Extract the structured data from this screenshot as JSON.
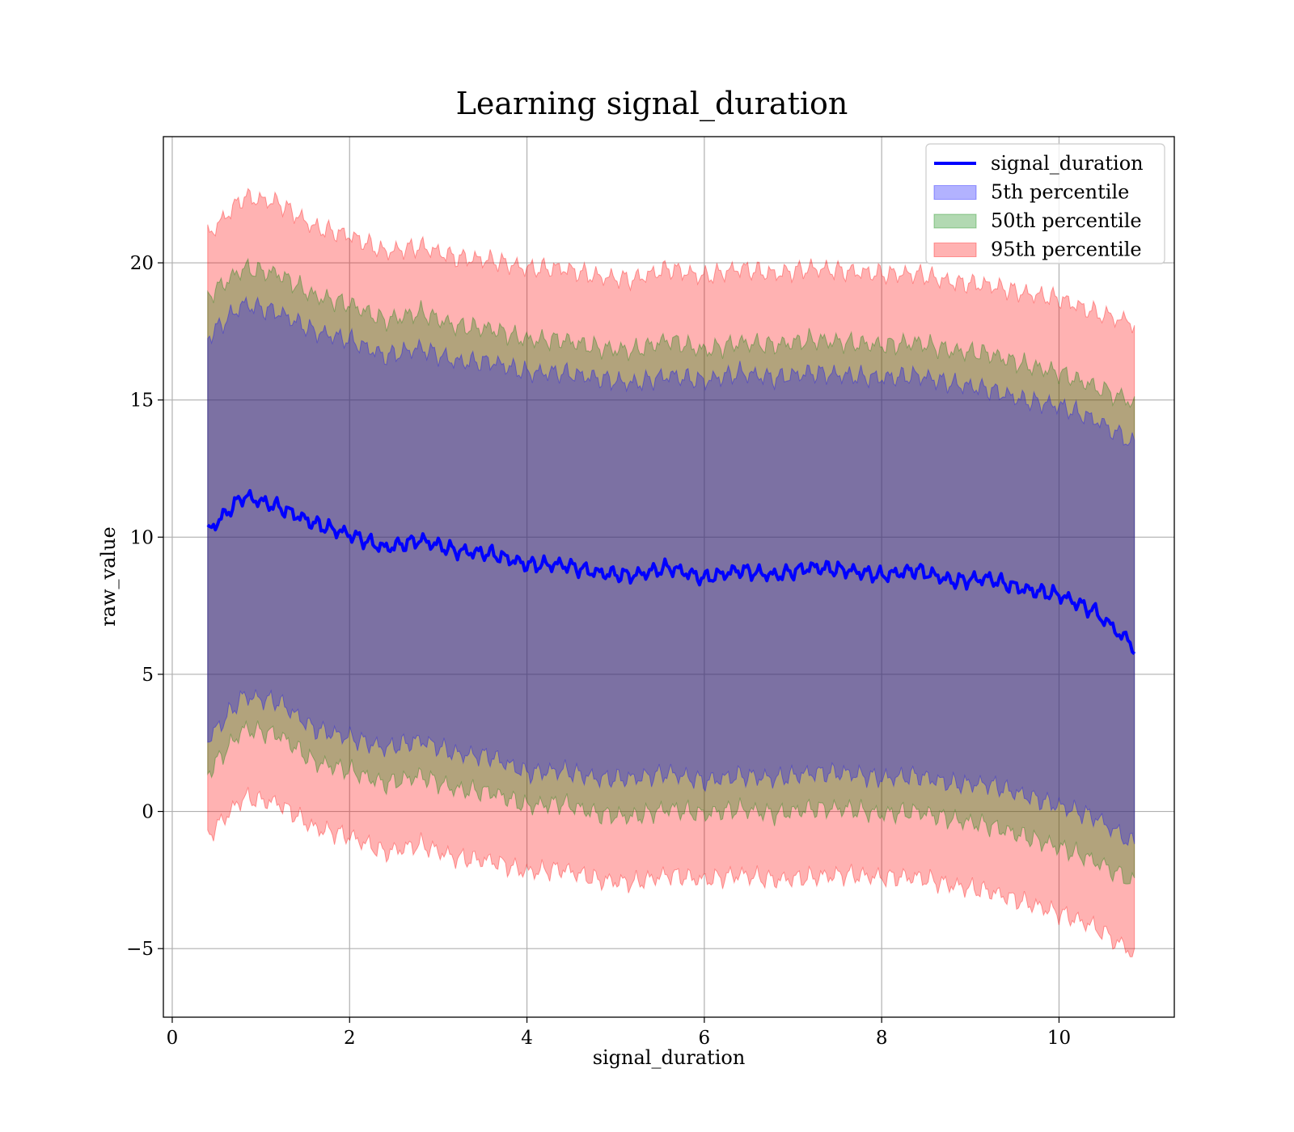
{
  "chart_data": {
    "type": "area",
    "title": "Learning signal_duration",
    "xlabel": "signal_duration",
    "ylabel": "raw_value",
    "xlim": [
      -0.1,
      11.3
    ],
    "ylim": [
      -7.5,
      24.6
    ],
    "x_ticks": [
      {
        "value": 0,
        "label": "0"
      },
      {
        "value": 2,
        "label": "2"
      },
      {
        "value": 4,
        "label": "4"
      },
      {
        "value": 6,
        "label": "6"
      },
      {
        "value": 8,
        "label": "8"
      },
      {
        "value": 10,
        "label": "10"
      }
    ],
    "y_ticks": [
      {
        "value": -5,
        "label": "−5"
      },
      {
        "value": 0,
        "label": "0"
      },
      {
        "value": 5,
        "label": "5"
      },
      {
        "value": 10,
        "label": "10"
      },
      {
        "value": 15,
        "label": "15"
      },
      {
        "value": 20,
        "label": "20"
      }
    ],
    "grid": true,
    "legend_position": "top-right",
    "x": [
      0.4,
      0.8,
      1.2,
      1.6,
      2.0,
      2.4,
      2.8,
      3.2,
      3.6,
      4.0,
      4.4,
      4.8,
      5.2,
      5.6,
      6.0,
      6.4,
      6.8,
      7.2,
      7.6,
      8.0,
      8.4,
      8.8,
      9.2,
      9.6,
      10.0,
      10.4,
      10.85
    ],
    "series": [
      {
        "name": "signal_duration",
        "kind": "line",
        "color": "#0000ff",
        "values": [
          10.2,
          11.5,
          11.1,
          10.5,
          10.1,
          9.6,
          9.9,
          9.5,
          9.4,
          9.0,
          9.0,
          8.7,
          8.6,
          8.9,
          8.5,
          8.8,
          8.6,
          8.9,
          8.8,
          8.6,
          8.8,
          8.4,
          8.5,
          8.1,
          7.9,
          7.3,
          6.0
        ]
      },
      {
        "name": "5th percentile",
        "kind": "band",
        "color": "#0000ff",
        "lower": [
          2.6,
          4.2,
          4.0,
          3.0,
          2.7,
          2.3,
          2.6,
          2.1,
          2.0,
          1.4,
          1.5,
          1.2,
          1.2,
          1.4,
          1.1,
          1.3,
          1.2,
          1.4,
          1.4,
          1.2,
          1.3,
          1.0,
          1.0,
          0.6,
          0.2,
          -0.2,
          -1.2
        ],
        "upper": [
          17.3,
          18.5,
          18.2,
          17.5,
          17.2,
          16.6,
          16.9,
          16.4,
          16.4,
          16.0,
          16.0,
          15.8,
          15.6,
          15.9,
          15.7,
          16.0,
          15.8,
          16.0,
          15.9,
          15.8,
          15.9,
          15.6,
          15.4,
          15.0,
          14.8,
          14.3,
          13.4
        ]
      },
      {
        "name": "50th percentile",
        "kind": "band",
        "color": "#008000",
        "lower": [
          1.4,
          3.0,
          2.8,
          1.8,
          1.5,
          1.0,
          1.3,
          0.8,
          0.7,
          0.2,
          0.3,
          -0.1,
          -0.2,
          0.1,
          -0.1,
          0.1,
          -0.1,
          0.1,
          0.1,
          -0.1,
          0.0,
          -0.3,
          -0.5,
          -0.9,
          -1.3,
          -1.8,
          -2.6
        ],
        "upper": [
          18.8,
          19.8,
          19.6,
          18.8,
          18.5,
          17.9,
          18.2,
          17.7,
          17.6,
          17.2,
          17.2,
          16.9,
          16.8,
          17.2,
          16.8,
          17.1,
          17.0,
          17.2,
          17.1,
          17.0,
          17.1,
          16.8,
          16.7,
          16.3,
          16.0,
          15.5,
          14.9
        ]
      },
      {
        "name": "95th percentile",
        "kind": "band",
        "color": "#ff0000",
        "lower": [
          -0.9,
          0.5,
          0.3,
          -0.6,
          -0.9,
          -1.5,
          -1.2,
          -1.7,
          -1.8,
          -2.2,
          -2.1,
          -2.5,
          -2.6,
          -2.3,
          -2.5,
          -2.3,
          -2.5,
          -2.4,
          -2.3,
          -2.4,
          -2.4,
          -2.7,
          -2.9,
          -3.3,
          -3.7,
          -4.2,
          -5.2
        ],
        "upper": [
          21.0,
          22.4,
          22.2,
          21.3,
          21.0,
          20.4,
          20.6,
          20.2,
          20.1,
          19.8,
          19.8,
          19.5,
          19.4,
          19.8,
          19.5,
          19.8,
          19.6,
          19.8,
          19.7,
          19.6,
          19.6,
          19.3,
          19.2,
          18.9,
          18.7,
          18.2,
          17.8
        ]
      }
    ]
  }
}
